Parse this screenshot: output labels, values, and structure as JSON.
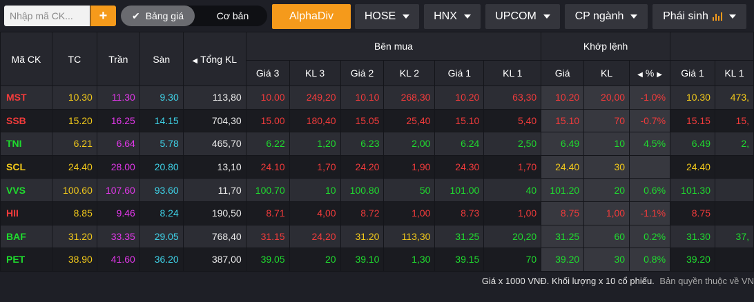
{
  "toolbar": {
    "search_placeholder": "Nhập mã CK...",
    "add_label": "+",
    "toggle_on_label": "Bảng giá",
    "toggle_off_label": "Cơ bản",
    "tabs": [
      "AlphaDiv",
      "HOSE",
      "HNX",
      "UPCOM",
      "CP ngành",
      "Phái sinh"
    ]
  },
  "headers": {
    "symbol": "Mã CK",
    "ref": "TC",
    "ceil": "Trần",
    "floor": "Sàn",
    "total_vol": "Tổng KL",
    "buy_group": "Bên mua",
    "match_group": "Khớp lệnh",
    "price3": "Giá 3",
    "vol3": "KL 3",
    "price2": "Giá 2",
    "vol2": "KL 2",
    "price1": "Giá 1",
    "vol1": "KL 1",
    "match_price": "Giá",
    "match_vol": "KL",
    "match_pct": "%",
    "sell_price1": "Giá 1",
    "sell_vol1": "KL 1"
  },
  "colors": {
    "red": "#f23b3b",
    "green": "#1fdc2e",
    "yellow": "#f2c91a",
    "purple": "#e238ea",
    "cyan": "#3fd3e8",
    "accent": "#f59a1b"
  },
  "rows": [
    {
      "sym": "MST",
      "c": "red",
      "tc": "10.30",
      "tran": "11.30",
      "san": "9.30",
      "tkl": "113,80",
      "g3": "10.00",
      "g3c": "red",
      "k3": "249,20",
      "g2": "10.10",
      "g2c": "red",
      "k2": "268,30",
      "g1": "10.20",
      "g1c": "red",
      "k1": "63,30",
      "mg": "10.20",
      "mgc": "red",
      "mk": "20,00",
      "pct": "-1.0%",
      "sg1": "10.30",
      "sg1c": "yellow",
      "sk1": "473,"
    },
    {
      "sym": "SSB",
      "c": "red",
      "tc": "15.20",
      "tran": "16.25",
      "san": "14.15",
      "tkl": "704,30",
      "g3": "15.00",
      "g3c": "red",
      "k3": "180,40",
      "g2": "15.05",
      "g2c": "red",
      "k2": "25,40",
      "g1": "15.10",
      "g1c": "red",
      "k1": "5,40",
      "mg": "15.10",
      "mgc": "red",
      "mk": "70",
      "pct": "-0.7%",
      "sg1": "15.15",
      "sg1c": "red",
      "sk1": "15,"
    },
    {
      "sym": "TNI",
      "c": "green",
      "tc": "6.21",
      "tran": "6.64",
      "san": "5.78",
      "tkl": "465,70",
      "g3": "6.22",
      "g3c": "green",
      "k3": "1,20",
      "g2": "6.23",
      "g2c": "green",
      "k2": "2,00",
      "g1": "6.24",
      "g1c": "green",
      "k1": "2,50",
      "mg": "6.49",
      "mgc": "green",
      "mk": "10",
      "pct": "4.5%",
      "sg1": "6.49",
      "sg1c": "green",
      "sk1": "2,"
    },
    {
      "sym": "SCL",
      "c": "yellow",
      "tc": "24.40",
      "tran": "28.00",
      "san": "20.80",
      "tkl": "13,10",
      "g3": "24.10",
      "g3c": "red",
      "k3": "1,70",
      "g2": "24.20",
      "g2c": "red",
      "k2": "1,90",
      "g1": "24.30",
      "g1c": "red",
      "k1": "1,70",
      "mg": "24.40",
      "mgc": "yellow",
      "mk": "30",
      "pct": "",
      "sg1": "24.40",
      "sg1c": "yellow",
      "sk1": ""
    },
    {
      "sym": "VVS",
      "c": "green",
      "tc": "100.60",
      "tran": "107.60",
      "san": "93.60",
      "tkl": "11,70",
      "g3": "100.70",
      "g3c": "green",
      "k3": "10",
      "g2": "100.80",
      "g2c": "green",
      "k2": "50",
      "g1": "101.00",
      "g1c": "green",
      "k1": "40",
      "mg": "101.20",
      "mgc": "green",
      "mk": "20",
      "pct": "0.6%",
      "sg1": "101.30",
      "sg1c": "green",
      "sk1": ""
    },
    {
      "sym": "HII",
      "c": "red",
      "tc": "8.85",
      "tran": "9.46",
      "san": "8.24",
      "tkl": "190,50",
      "g3": "8.71",
      "g3c": "red",
      "k3": "4,00",
      "g2": "8.72",
      "g2c": "red",
      "k2": "1,00",
      "g1": "8.73",
      "g1c": "red",
      "k1": "1,00",
      "mg": "8.75",
      "mgc": "red",
      "mk": "1,00",
      "pct": "-1.1%",
      "sg1": "8.75",
      "sg1c": "red",
      "sk1": ""
    },
    {
      "sym": "BAF",
      "c": "green",
      "tc": "31.20",
      "tran": "33.35",
      "san": "29.05",
      "tkl": "768,40",
      "g3": "31.15",
      "g3c": "red",
      "k3": "24,20",
      "g2": "31.20",
      "g2c": "yellow",
      "k2": "113,30",
      "g1": "31.25",
      "g1c": "green",
      "k1": "20,20",
      "mg": "31.25",
      "mgc": "green",
      "mk": "60",
      "pct": "0.2%",
      "sg1": "31.30",
      "sg1c": "green",
      "sk1": "37,"
    },
    {
      "sym": "PET",
      "c": "green",
      "tc": "38.90",
      "tran": "41.60",
      "san": "36.20",
      "tkl": "387,00",
      "g3": "39.05",
      "g3c": "green",
      "k3": "20",
      "g2": "39.10",
      "g2c": "green",
      "k2": "1,30",
      "g1": "39.15",
      "g1c": "green",
      "k1": "70",
      "mg": "39.20",
      "mgc": "green",
      "mk": "30",
      "pct": "0.8%",
      "sg1": "39.20",
      "sg1c": "green",
      "sk1": ""
    }
  ],
  "footer": {
    "note": "Giá x 1000 VNĐ. Khối lượng x 10 cổ phiếu.",
    "copyright": "Bản quyền thuộc về VN"
  }
}
